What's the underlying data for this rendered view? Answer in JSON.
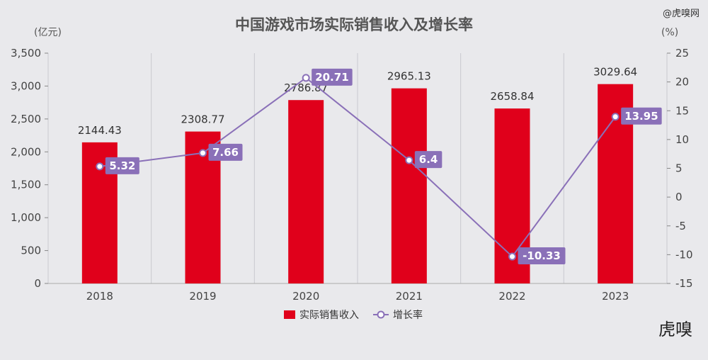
{
  "watermark_top": "@虎嗅网",
  "watermark_logo": "虎嗅",
  "chart_data": {
    "type": "bar",
    "title": "中国游戏市场实际销售收入及增长率",
    "left_unit": "(亿元)",
    "right_unit": "(%)",
    "categories": [
      "2018",
      "2019",
      "2020",
      "2021",
      "2022",
      "2023"
    ],
    "left_axis": {
      "min": 0,
      "max": 3500,
      "ticks": [
        "0",
        "500",
        "1,000",
        "1,500",
        "2,000",
        "2,500",
        "3,000",
        "3,500"
      ]
    },
    "right_axis": {
      "min": -15,
      "max": 25,
      "ticks": [
        "-15",
        "-10",
        "-5",
        "0",
        "5",
        "10",
        "15",
        "20",
        "25"
      ]
    },
    "series": [
      {
        "name": "实际销售收入",
        "kind": "bar",
        "axis": "left",
        "color": "#e0001b",
        "values": [
          2144.43,
          2308.77,
          2786.87,
          2965.13,
          2658.84,
          3029.64
        ],
        "labels": [
          "2144.43",
          "2308.77",
          "2786.87",
          "2965.13",
          "2658.84",
          "3029.64"
        ]
      },
      {
        "name": "增长率",
        "kind": "line",
        "axis": "right",
        "color": "#8a70b8",
        "values": [
          5.32,
          7.66,
          20.71,
          6.4,
          -10.33,
          13.95
        ],
        "labels": [
          "5.32",
          "7.66",
          "20.71",
          "6.4",
          "-10.33",
          "13.95"
        ]
      }
    ],
    "grid": "vertical",
    "legend_position": "bottom-center"
  }
}
